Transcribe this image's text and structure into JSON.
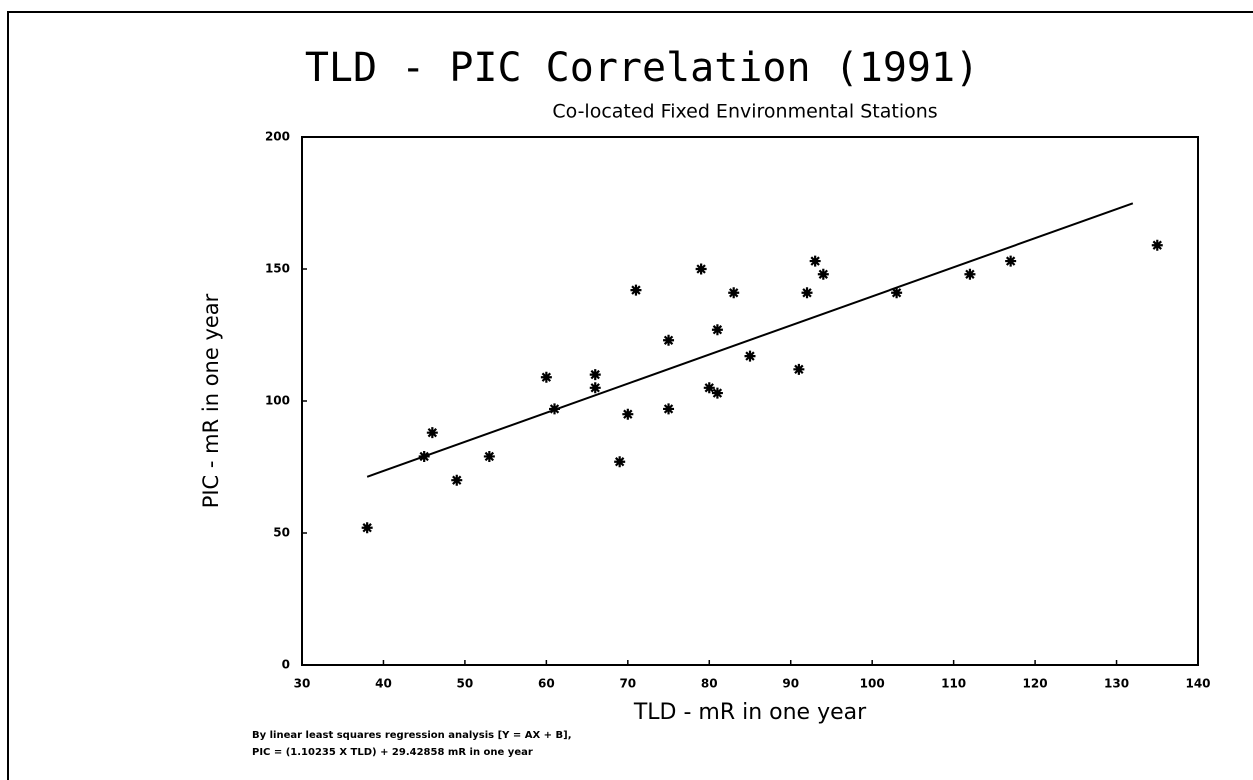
{
  "chart_data": {
    "type": "scatter",
    "title": "TLD - PIC Correlation (1991)",
    "subtitle": "Co-located Fixed Environmental Stations",
    "x_label": "TLD - mR in one year",
    "y_label": "PIC - mR in one year",
    "annotations": [
      "By linear least squares regression analysis [Y = AX + B],",
      "PIC = (1.10235 X TLD) + 29.42858 mR in one year"
    ],
    "xlim": [
      30,
      140
    ],
    "xticks": [
      30,
      40,
      50,
      60,
      70,
      80,
      90,
      100,
      110,
      120,
      130,
      140
    ],
    "ylim": [
      0,
      200
    ],
    "yticks": [
      0,
      50,
      100,
      150,
      200
    ],
    "series": [
      {
        "type": "scatter",
        "color": "#000000",
        "x": [
          38,
          45,
          46,
          49,
          53,
          60,
          61,
          66,
          66,
          70,
          69,
          71,
          75,
          75,
          79,
          80,
          81,
          81,
          83,
          85,
          91,
          92,
          93,
          94,
          103,
          112,
          117,
          135
        ],
        "values": [
          52,
          79,
          88,
          70,
          79,
          109,
          97,
          110,
          105,
          95,
          77,
          142,
          123,
          97,
          150,
          105,
          103,
          127,
          141,
          117,
          112,
          141,
          153,
          148,
          141,
          148,
          153,
          159
        ]
      },
      {
        "type": "line",
        "color": "#000000",
        "x": [
          38,
          132
        ],
        "values": [
          71.3,
          174.9
        ]
      }
    ]
  }
}
